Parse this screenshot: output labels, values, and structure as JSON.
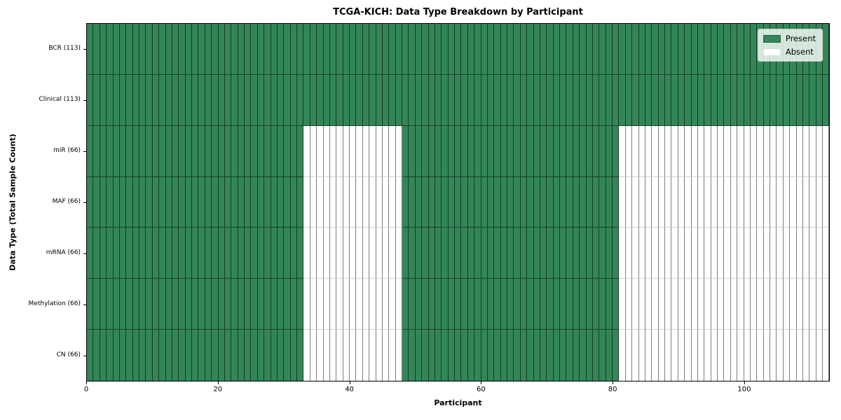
{
  "chart_data": {
    "type": "heatmap",
    "title": "TCGA-KICH: Data Type Breakdown by Participant",
    "xlabel": "Participant",
    "ylabel": "Data Type (Total Sample Count)",
    "x_ticks": [
      0,
      20,
      40,
      60,
      80,
      100
    ],
    "xlim": [
      0,
      113
    ],
    "n_participants": 113,
    "grid": false,
    "legend_position": "top-right",
    "rows": [
      {
        "label": "BCR (113)",
        "present_count": 113,
        "present_runs": [
          [
            0,
            113
          ]
        ]
      },
      {
        "label": "Clinical (113)",
        "present_count": 113,
        "present_runs": [
          [
            0,
            113
          ]
        ]
      },
      {
        "label": "miR (66)",
        "present_count": 66,
        "present_runs": [
          [
            0,
            33
          ],
          [
            48,
            81
          ]
        ]
      },
      {
        "label": "MAF (66)",
        "present_count": 66,
        "present_runs": [
          [
            0,
            33
          ],
          [
            48,
            81
          ]
        ]
      },
      {
        "label": "mRNA (66)",
        "present_count": 66,
        "present_runs": [
          [
            0,
            33
          ],
          [
            48,
            81
          ]
        ]
      },
      {
        "label": "Methylation (66)",
        "present_count": 66,
        "present_runs": [
          [
            0,
            33
          ],
          [
            48,
            81
          ]
        ]
      },
      {
        "label": "CN (66)",
        "present_count": 66,
        "present_runs": [
          [
            0,
            33
          ],
          [
            48,
            81
          ]
        ]
      }
    ],
    "legend": [
      {
        "label": "Present",
        "color": "#338657",
        "swatch_border": "#26603f"
      },
      {
        "label": "Absent",
        "color": "#ffffff",
        "swatch_border": "#dddddd"
      }
    ],
    "colors": {
      "present": "#338657",
      "absent": "#ffffff",
      "axis": "#000000"
    }
  }
}
